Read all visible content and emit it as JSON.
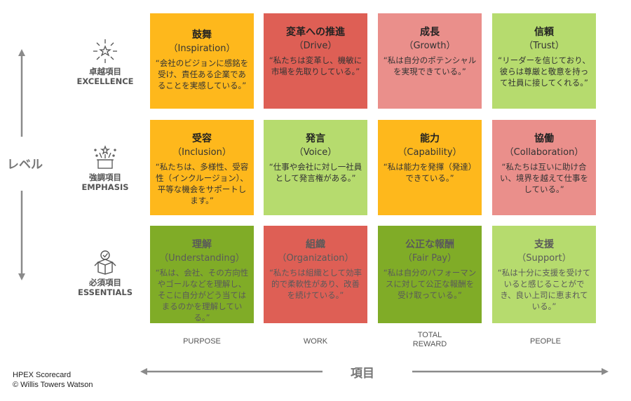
{
  "colors": {
    "orange": "#FEB81C",
    "red": "#DE5F55",
    "pink": "#EA8F8B",
    "light_green": "#B6DB6E",
    "green": "#80AC27"
  },
  "levels": [
    {
      "jp": "卓越項目",
      "en": "EXCELLENCE",
      "icon": "sparkle-icon"
    },
    {
      "jp": "強調項目",
      "en": "EMPHASIS",
      "icon": "gift-box-icon"
    },
    {
      "jp": "必須項目",
      "en": "ESSENTIALS",
      "icon": "checked-box-icon"
    }
  ],
  "level_axis_label": "レベル",
  "item_axis_label": "項目",
  "columns": [
    "PURPOSE",
    "WORK",
    "TOTAL REWARD",
    "PEOPLE"
  ],
  "rows": [
    [
      {
        "title": "鼓舞",
        "sub": "（Inspiration）",
        "quote": "“会社のビジョンに感銘を受け、責任ある企業であることを実感している。”",
        "color": "orange"
      },
      {
        "title": "変革への推進",
        "sub": "（Drive）",
        "quote": "“私たちは変革し、機敏に市場を先取りしている。”",
        "color": "red"
      },
      {
        "title": "成長",
        "sub": "（Growth）",
        "quote": "“私は自分のポテンシャルを実現できている。”",
        "color": "pink"
      },
      {
        "title": "信頼",
        "sub": "（Trust）",
        "quote": "“リーダーを信じており、彼らは尊厳と敬意を持って社員に接してくれる。”",
        "color": "light_green"
      }
    ],
    [
      {
        "title": "受容",
        "sub": "（Inclusion）",
        "quote": "“私たちは、多様性、受容性（インクルージョン）、平等な機会をサポートします。”",
        "color": "orange"
      },
      {
        "title": "発言",
        "sub": "（Voice）",
        "quote": "“仕事や会社に対し一社員として発言権がある。”",
        "color": "light_green"
      },
      {
        "title": "能力",
        "sub": "（Capability）",
        "quote": "“私は能力を発揮（発達）できている。”",
        "color": "orange"
      },
      {
        "title": "協働",
        "sub": "（Collaboration）",
        "quote": "“私たちは互いに助け合い、境界を越えて仕事をしている。”",
        "color": "pink"
      }
    ],
    [
      {
        "title": "理解",
        "sub": "（Understanding）",
        "quote": "“私は、会社、その方向性やゴールなどを理解し、そこに自分がどう当てはまるのかを理解している。”",
        "color": "green"
      },
      {
        "title": "組織",
        "sub": "（Organization）",
        "quote": "“私たちは組織として効率的で柔軟性があり、改善を続けている。”",
        "color": "red"
      },
      {
        "title": "公正な報酬",
        "sub": "（Fair Pay）",
        "quote": "“私は自分のパフォーマンスに対して公正な報酬を受け取っている。”",
        "color": "green"
      },
      {
        "title": "支援",
        "sub": "（Support）",
        "quote": "“私は十分に支援を受けていると感じることができ、良い上司に恵まれている。”",
        "color": "light_green"
      }
    ]
  ],
  "footer": {
    "line1": "HPEX Scorecard",
    "line2": "© Willis Towers Watson"
  }
}
